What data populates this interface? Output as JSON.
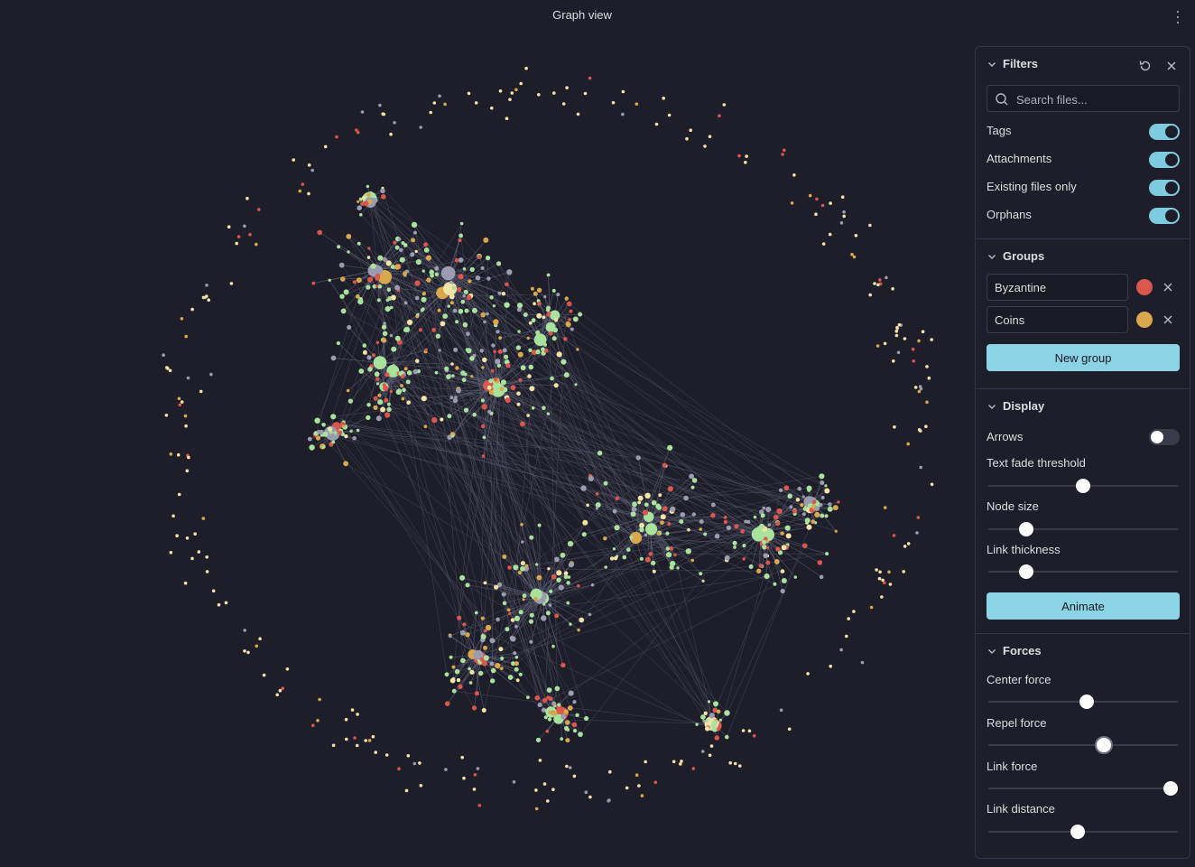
{
  "window": {
    "title": "Graph view",
    "more_icon": "more-vertical-icon"
  },
  "filters": {
    "header": "Filters",
    "search_placeholder": "Search files...",
    "search_value": "",
    "toggles": [
      {
        "label": "Tags",
        "on": true
      },
      {
        "label": "Attachments",
        "on": true
      },
      {
        "label": "Existing files only",
        "on": true
      },
      {
        "label": "Orphans",
        "on": true
      }
    ]
  },
  "groups": {
    "header": "Groups",
    "items": [
      {
        "query": "Byzantine",
        "color": "#d9574c"
      },
      {
        "query": "Coins",
        "color": "#d9a84c"
      }
    ],
    "new_group_label": "New group"
  },
  "display": {
    "header": "Display",
    "arrows": {
      "label": "Arrows",
      "on": false
    },
    "sliders": [
      {
        "label": "Text fade threshold",
        "value": 0.5
      },
      {
        "label": "Node size",
        "value": 0.2
      },
      {
        "label": "Link thickness",
        "value": 0.2
      }
    ],
    "animate_label": "Animate"
  },
  "forces": {
    "header": "Forces",
    "sliders": [
      {
        "label": "Center force",
        "value": 0.52
      },
      {
        "label": "Repel force",
        "value": 0.61
      },
      {
        "label": "Link force",
        "value": 0.96
      },
      {
        "label": "Link distance",
        "value": 0.47
      }
    ]
  },
  "graph": {
    "node_colors": {
      "default": "#9b9cb0",
      "green": "#a8e29c",
      "red": "#d9574c",
      "gold": "#d9a84c",
      "cream": "#f3e3a6"
    },
    "link_color": "#5e5f75"
  }
}
